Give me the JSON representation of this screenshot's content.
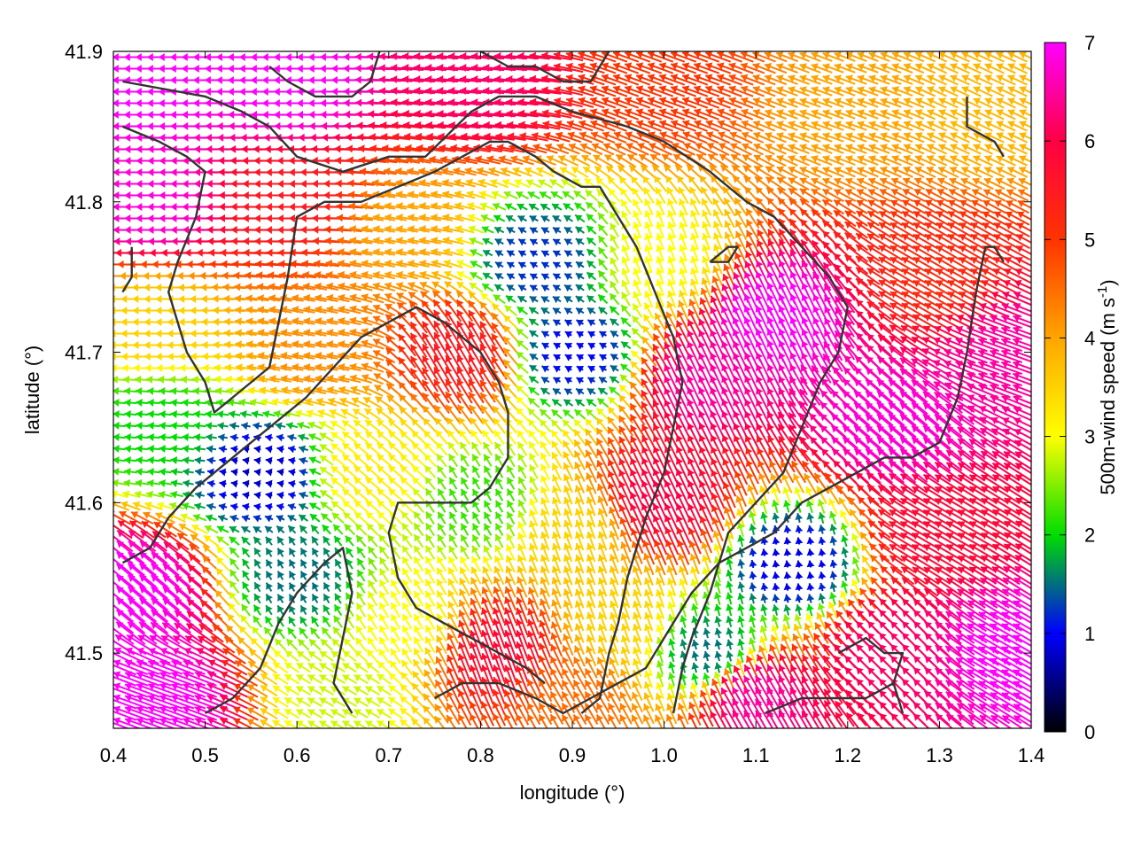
{
  "chart_data": {
    "type": "vector_field",
    "xlabel": "longitude (°)",
    "ylabel": "latitude (°)",
    "xlim": [
      0.4,
      1.4
    ],
    "ylim": [
      41.45,
      41.9
    ],
    "x_ticks": [
      {
        "value": 0.4,
        "label": "0.4"
      },
      {
        "value": 0.5,
        "label": "0.5"
      },
      {
        "value": 0.6,
        "label": "0.6"
      },
      {
        "value": 0.7,
        "label": "0.7"
      },
      {
        "value": 0.8,
        "label": "0.8"
      },
      {
        "value": 0.9,
        "label": "0.9"
      },
      {
        "value": 1.0,
        "label": "1.0"
      },
      {
        "value": 1.1,
        "label": "1.1"
      },
      {
        "value": 1.2,
        "label": "1.2"
      },
      {
        "value": 1.3,
        "label": "1.3"
      },
      {
        "value": 1.4,
        "label": "1.4"
      }
    ],
    "y_ticks": [
      {
        "value": 41.5,
        "label": "41.5"
      },
      {
        "value": 41.6,
        "label": "41.6"
      },
      {
        "value": 41.7,
        "label": "41.7"
      },
      {
        "value": 41.8,
        "label": "41.8"
      },
      {
        "value": 41.9,
        "label": "41.9"
      }
    ],
    "grid": false,
    "colorbar": {
      "label_prefix": "500m-wind speed (m s",
      "label_superscript": "-1",
      "label_suffix": ")",
      "range": [
        0,
        7
      ],
      "ticks": [
        {
          "value": 0,
          "label": "0"
        },
        {
          "value": 1,
          "label": "1"
        },
        {
          "value": 2,
          "label": "2"
        },
        {
          "value": 3,
          "label": "3"
        },
        {
          "value": 4,
          "label": "4"
        },
        {
          "value": 5,
          "label": "5"
        },
        {
          "value": 6,
          "label": "6"
        },
        {
          "value": 7,
          "label": "7"
        }
      ],
      "color_stops": [
        {
          "value": 0,
          "color": "#000000"
        },
        {
          "value": 1,
          "color": "#0000ff"
        },
        {
          "value": 2,
          "color": "#00dd00"
        },
        {
          "value": 3,
          "color": "#ffff00"
        },
        {
          "value": 4,
          "color": "#ffa500"
        },
        {
          "value": 5,
          "color": "#ff3300"
        },
        {
          "value": 6,
          "color": "#ff0044"
        },
        {
          "value": 7,
          "color": "#ff00ff"
        }
      ]
    },
    "wind_regions": [
      {
        "lon": 0.45,
        "lat": 41.88,
        "speed": 7.0,
        "dir": 180
      },
      {
        "lon": 0.6,
        "lat": 41.88,
        "speed": 7.0,
        "dir": 180
      },
      {
        "lon": 0.8,
        "lat": 41.88,
        "speed": 6.2,
        "dir": 175
      },
      {
        "lon": 1.0,
        "lat": 41.88,
        "speed": 5.0,
        "dir": 160
      },
      {
        "lon": 1.2,
        "lat": 41.86,
        "speed": 4.0,
        "dir": 160
      },
      {
        "lon": 1.35,
        "lat": 41.86,
        "speed": 3.8,
        "dir": 155
      },
      {
        "lon": 0.45,
        "lat": 41.8,
        "speed": 6.8,
        "dir": 180
      },
      {
        "lon": 0.6,
        "lat": 41.8,
        "speed": 5.5,
        "dir": 180
      },
      {
        "lon": 0.72,
        "lat": 41.78,
        "speed": 4.0,
        "dir": 170
      },
      {
        "lon": 0.86,
        "lat": 41.76,
        "speed": 1.2,
        "dir": 150
      },
      {
        "lon": 1.0,
        "lat": 41.76,
        "speed": 3.0,
        "dir": 110
      },
      {
        "lon": 1.12,
        "lat": 41.72,
        "speed": 7.0,
        "dir": 115
      },
      {
        "lon": 1.3,
        "lat": 41.75,
        "speed": 5.2,
        "dir": 150
      },
      {
        "lon": 0.45,
        "lat": 41.72,
        "speed": 3.5,
        "dir": 180
      },
      {
        "lon": 0.62,
        "lat": 41.7,
        "speed": 4.2,
        "dir": 170
      },
      {
        "lon": 0.78,
        "lat": 41.7,
        "speed": 5.5,
        "dir": 120
      },
      {
        "lon": 0.9,
        "lat": 41.7,
        "speed": 1.0,
        "dir": 150
      },
      {
        "lon": 1.05,
        "lat": 41.68,
        "speed": 6.5,
        "dir": 115
      },
      {
        "lon": 1.25,
        "lat": 41.65,
        "speed": 6.8,
        "dir": 140
      },
      {
        "lon": 1.38,
        "lat": 41.7,
        "speed": 6.5,
        "dir": 160
      },
      {
        "lon": 0.45,
        "lat": 41.65,
        "speed": 2.0,
        "dir": 175
      },
      {
        "lon": 0.56,
        "lat": 41.62,
        "speed": 0.8,
        "dir": 170
      },
      {
        "lon": 0.68,
        "lat": 41.62,
        "speed": 3.2,
        "dir": 140
      },
      {
        "lon": 0.8,
        "lat": 41.6,
        "speed": 2.2,
        "dir": 120
      },
      {
        "lon": 0.9,
        "lat": 41.58,
        "speed": 3.5,
        "dir": 110
      },
      {
        "lon": 1.0,
        "lat": 41.6,
        "speed": 6.0,
        "dir": 115
      },
      {
        "lon": 1.14,
        "lat": 41.56,
        "speed": 0.9,
        "dir": 100
      },
      {
        "lon": 1.3,
        "lat": 41.58,
        "speed": 5.8,
        "dir": 150
      },
      {
        "lon": 0.43,
        "lat": 41.54,
        "speed": 7.0,
        "dir": 140
      },
      {
        "lon": 0.6,
        "lat": 41.55,
        "speed": 1.5,
        "dir": 120
      },
      {
        "lon": 0.72,
        "lat": 41.52,
        "speed": 3.0,
        "dir": 120
      },
      {
        "lon": 0.82,
        "lat": 41.5,
        "speed": 5.8,
        "dir": 110
      },
      {
        "lon": 0.95,
        "lat": 41.52,
        "speed": 3.5,
        "dir": 110
      },
      {
        "lon": 1.05,
        "lat": 41.5,
        "speed": 1.5,
        "dir": 105
      },
      {
        "lon": 1.25,
        "lat": 41.5,
        "speed": 6.2,
        "dir": 135
      },
      {
        "lon": 1.38,
        "lat": 41.5,
        "speed": 7.0,
        "dir": 150
      },
      {
        "lon": 0.45,
        "lat": 41.47,
        "speed": 7.0,
        "dir": 160
      },
      {
        "lon": 0.65,
        "lat": 41.47,
        "speed": 2.8,
        "dir": 150
      },
      {
        "lon": 0.9,
        "lat": 41.47,
        "speed": 4.5,
        "dir": 120
      },
      {
        "lon": 1.1,
        "lat": 41.47,
        "speed": 6.5,
        "dir": 120
      }
    ],
    "contours": [
      [
        [
          0.41,
          41.88
        ],
        [
          0.5,
          41.87
        ],
        [
          0.54,
          41.86
        ],
        [
          0.57,
          41.85
        ],
        [
          0.6,
          41.83
        ],
        [
          0.65,
          41.82
        ],
        [
          0.7,
          41.83
        ],
        [
          0.74,
          41.83
        ],
        [
          0.79,
          41.86
        ],
        [
          0.82,
          41.87
        ],
        [
          0.86,
          41.87
        ],
        [
          0.9,
          41.86
        ],
        [
          0.96,
          41.85
        ],
        [
          1.0,
          41.84
        ],
        [
          1.05,
          41.82
        ],
        [
          1.09,
          41.8
        ],
        [
          1.12,
          41.79
        ],
        [
          1.15,
          41.77
        ],
        [
          1.18,
          41.75
        ],
        [
          1.2,
          41.73
        ],
        [
          1.19,
          41.7
        ],
        [
          1.17,
          41.68
        ],
        [
          1.15,
          41.65
        ],
        [
          1.13,
          41.62
        ],
        [
          1.1,
          41.6
        ],
        [
          1.07,
          41.58
        ],
        [
          1.05,
          41.54
        ],
        [
          1.03,
          41.51
        ],
        [
          1.02,
          41.49
        ],
        [
          1.01,
          41.46
        ]
      ],
      [
        [
          0.41,
          41.85
        ],
        [
          0.45,
          41.84
        ],
        [
          0.48,
          41.83
        ],
        [
          0.5,
          41.82
        ],
        [
          0.49,
          41.79
        ],
        [
          0.47,
          41.76
        ],
        [
          0.46,
          41.74
        ],
        [
          0.48,
          41.7
        ],
        [
          0.5,
          41.68
        ],
        [
          0.51,
          41.66
        ],
        [
          0.53,
          41.67
        ],
        [
          0.55,
          41.68
        ],
        [
          0.57,
          41.69
        ],
        [
          0.58,
          41.72
        ],
        [
          0.59,
          41.75
        ],
        [
          0.6,
          41.79
        ],
        [
          0.63,
          41.8
        ],
        [
          0.67,
          41.8
        ],
        [
          0.71,
          41.81
        ],
        [
          0.75,
          41.82
        ],
        [
          0.78,
          41.83
        ],
        [
          0.81,
          41.84
        ],
        [
          0.83,
          41.84
        ],
        [
          0.86,
          41.83
        ],
        [
          0.88,
          41.82
        ],
        [
          0.91,
          41.81
        ],
        [
          0.93,
          41.81
        ],
        [
          0.95,
          41.79
        ],
        [
          0.97,
          41.77
        ],
        [
          0.99,
          41.74
        ],
        [
          1.01,
          41.71
        ],
        [
          1.02,
          41.68
        ],
        [
          1.01,
          41.65
        ],
        [
          1.0,
          41.62
        ],
        [
          0.98,
          41.59
        ],
        [
          0.96,
          41.55
        ],
        [
          0.95,
          41.52
        ],
        [
          0.94,
          41.5
        ],
        [
          0.93,
          41.47
        ],
        [
          0.91,
          41.46
        ]
      ],
      [
        [
          0.41,
          41.56
        ],
        [
          0.44,
          41.57
        ],
        [
          0.46,
          41.59
        ],
        [
          0.49,
          41.61
        ],
        [
          0.53,
          41.63
        ],
        [
          0.57,
          41.65
        ],
        [
          0.61,
          41.67
        ],
        [
          0.64,
          41.69
        ],
        [
          0.67,
          41.71
        ],
        [
          0.7,
          41.72
        ],
        [
          0.73,
          41.73
        ],
        [
          0.76,
          41.72
        ],
        [
          0.78,
          41.71
        ],
        [
          0.8,
          41.7
        ],
        [
          0.82,
          41.68
        ],
        [
          0.83,
          41.66
        ],
        [
          0.83,
          41.63
        ],
        [
          0.81,
          41.61
        ],
        [
          0.79,
          41.6
        ],
        [
          0.76,
          41.6
        ],
        [
          0.74,
          41.6
        ],
        [
          0.71,
          41.6
        ],
        [
          0.7,
          41.58
        ],
        [
          0.71,
          41.55
        ],
        [
          0.73,
          41.53
        ],
        [
          0.76,
          41.52
        ],
        [
          0.79,
          41.51
        ],
        [
          0.82,
          41.5
        ],
        [
          0.85,
          41.49
        ],
        [
          0.87,
          41.48
        ]
      ],
      [
        [
          0.5,
          41.46
        ],
        [
          0.53,
          41.47
        ],
        [
          0.56,
          41.49
        ],
        [
          0.58,
          41.52
        ],
        [
          0.6,
          41.54
        ],
        [
          0.63,
          41.56
        ],
        [
          0.65,
          41.57
        ],
        [
          0.66,
          41.54
        ],
        [
          0.65,
          41.51
        ],
        [
          0.64,
          41.48
        ],
        [
          0.66,
          41.46
        ]
      ],
      [
        [
          0.75,
          41.47
        ],
        [
          0.78,
          41.48
        ],
        [
          0.82,
          41.48
        ],
        [
          0.86,
          41.47
        ],
        [
          0.89,
          41.46
        ],
        [
          0.92,
          41.47
        ],
        [
          0.95,
          41.48
        ],
        [
          0.98,
          41.49
        ],
        [
          1.0,
          41.51
        ],
        [
          1.03,
          41.54
        ],
        [
          1.06,
          41.56
        ],
        [
          1.09,
          41.57
        ],
        [
          1.12,
          41.58
        ],
        [
          1.15,
          41.6
        ],
        [
          1.18,
          41.61
        ],
        [
          1.21,
          41.62
        ],
        [
          1.24,
          41.63
        ],
        [
          1.27,
          41.63
        ],
        [
          1.3,
          41.64
        ],
        [
          1.32,
          41.67
        ],
        [
          1.33,
          41.7
        ],
        [
          1.34,
          41.74
        ],
        [
          1.35,
          41.77
        ],
        [
          1.36,
          41.77
        ],
        [
          1.37,
          41.76
        ]
      ],
      [
        [
          1.11,
          41.46
        ],
        [
          1.15,
          41.47
        ],
        [
          1.19,
          41.47
        ],
        [
          1.22,
          41.47
        ],
        [
          1.25,
          41.48
        ],
        [
          1.26,
          41.46
        ]
      ],
      [
        [
          1.33,
          41.87
        ],
        [
          1.33,
          41.85
        ],
        [
          1.36,
          41.84
        ],
        [
          1.37,
          41.83
        ]
      ],
      [
        [
          0.57,
          41.89
        ],
        [
          0.59,
          41.88
        ],
        [
          0.62,
          41.87
        ],
        [
          0.66,
          41.87
        ],
        [
          0.68,
          41.88
        ],
        [
          0.69,
          41.9
        ]
      ],
      [
        [
          0.8,
          41.9
        ],
        [
          0.83,
          41.89
        ],
        [
          0.86,
          41.89
        ],
        [
          0.89,
          41.88
        ],
        [
          0.92,
          41.88
        ],
        [
          0.94,
          41.9
        ]
      ],
      [
        [
          0.42,
          41.77
        ],
        [
          0.42,
          41.75
        ],
        [
          0.41,
          41.74
        ]
      ],
      [
        [
          1.05,
          41.76
        ],
        [
          1.07,
          41.77
        ],
        [
          1.08,
          41.77
        ],
        [
          1.07,
          41.76
        ],
        [
          1.05,
          41.76
        ]
      ],
      [
        [
          1.19,
          41.5
        ],
        [
          1.22,
          41.51
        ],
        [
          1.24,
          41.5
        ],
        [
          1.26,
          41.5
        ],
        [
          1.25,
          41.48
        ]
      ]
    ]
  }
}
